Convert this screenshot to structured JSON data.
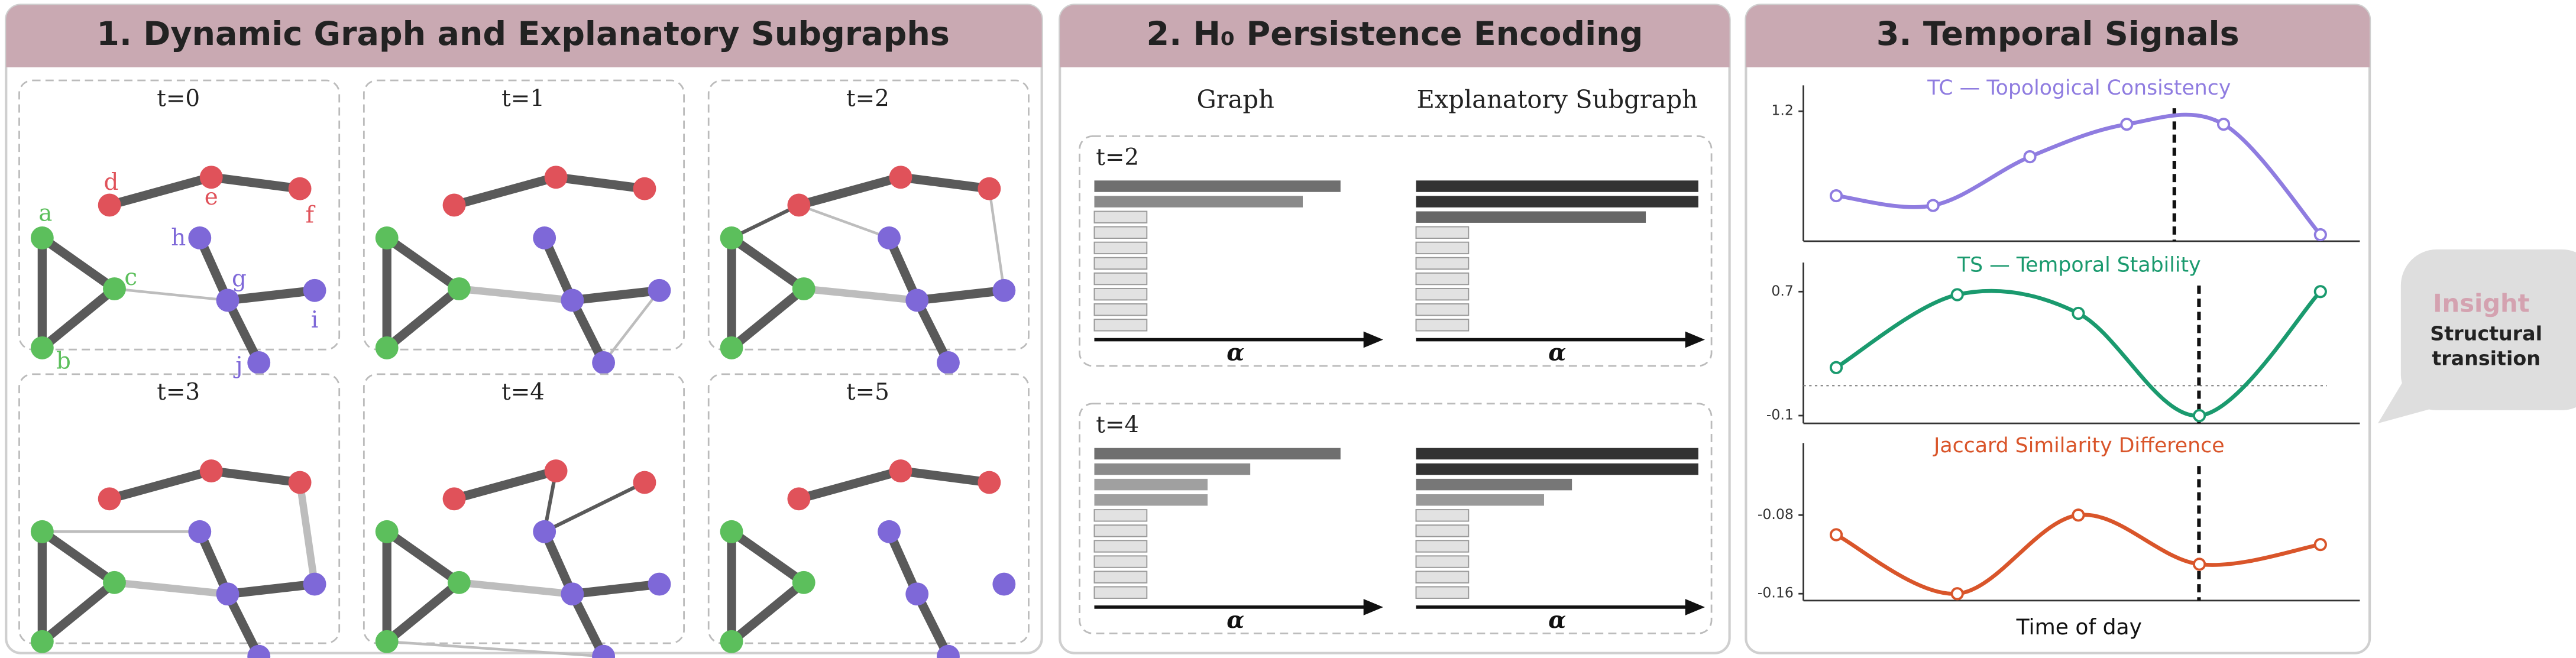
{
  "panels": [
    {
      "title": "1. Dynamic Graph and Explanatory Subgraphs",
      "snapshots": [
        "t=0",
        "t=1",
        "t=2",
        "t=3",
        "t=4",
        "t=5"
      ],
      "node_labels": [
        "a",
        "b",
        "c",
        "d",
        "e",
        "f",
        "g",
        "h",
        "i",
        "j"
      ]
    },
    {
      "title": "2. H₀ Persistence Encoding",
      "columns": [
        "Graph",
        "Explanatory Subgraph"
      ],
      "rows": [
        "t=2",
        "t=4"
      ],
      "axis_label": "α"
    },
    {
      "title": "3. Temporal Signals"
    }
  ],
  "chart_data": [
    {
      "type": "line",
      "title": "TC — Topological Consistency",
      "color": "#8f7ce0",
      "categories": [
        null,
        null,
        null,
        null,
        null,
        null
      ],
      "values": [
        0.94,
        0.91,
        1.06,
        1.16,
        1.16,
        0.82
      ],
      "ylim": [
        0.8,
        1.3
      ],
      "yticks": [
        1.2
      ]
    },
    {
      "type": "line",
      "title": "TS — Temporal Stability",
      "color": "#1a9a6e",
      "categories": [
        null,
        null,
        null,
        null,
        null
      ],
      "values": [
        0.21,
        0.68,
        0.56,
        -0.1,
        0.7
      ],
      "ylim": [
        -0.15,
        0.93
      ],
      "yticks": [
        0.7,
        -0.1
      ]
    },
    {
      "type": "line",
      "title": "Jaccard Similarity Difference",
      "color": "#d9552a",
      "categories": [
        null,
        null,
        null,
        null,
        null
      ],
      "values": [
        -0.1,
        -0.16,
        -0.08,
        -0.13,
        -0.11
      ],
      "ylim": [
        -0.167,
        0
      ],
      "yticks": [
        -0.08,
        -0.16
      ],
      "x_label": "Time of day"
    }
  ],
  "callout": {
    "title": "Insight",
    "lines": [
      "Structural",
      "transition"
    ]
  }
}
